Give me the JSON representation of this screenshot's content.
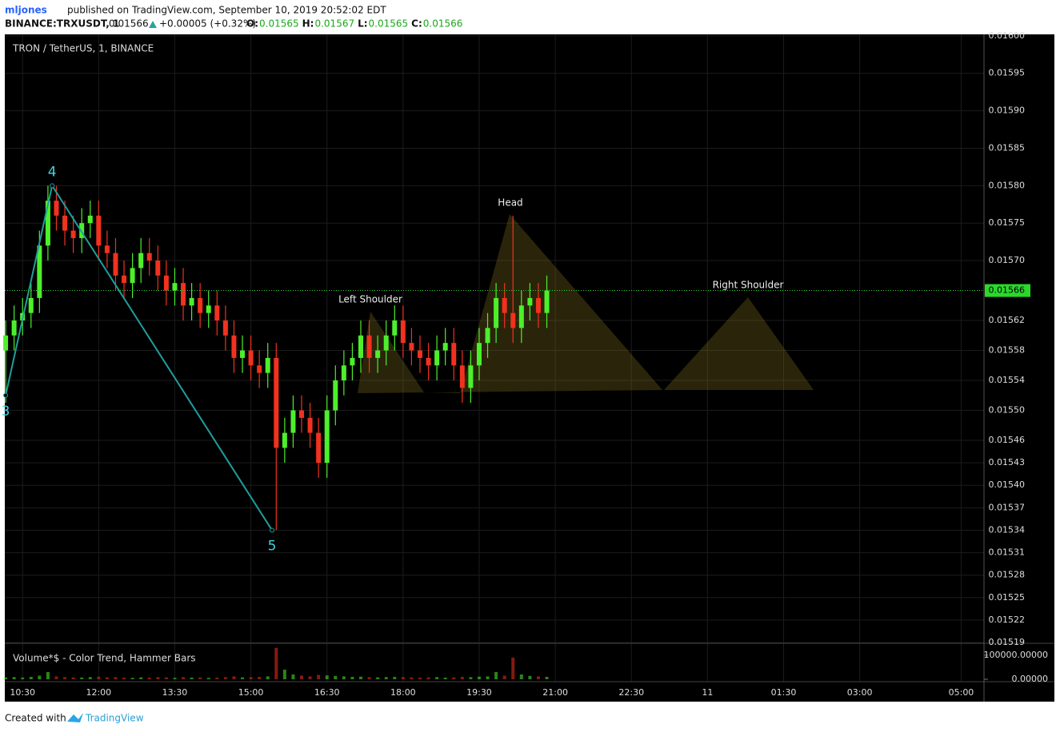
{
  "header": {
    "user": "mljones",
    "published": "published on TradingView.com, September 10, 2019 20:52:02 EDT",
    "symbol": "BINANCE:TRXUSDT, 1",
    "last": "0.01566",
    "change": "+0.00005 (+0.32%)",
    "ohlc": [
      {
        "key": "O:",
        "value": "0.01565"
      },
      {
        "key": "H:",
        "value": "0.01567"
      },
      {
        "key": "L:",
        "value": "0.01565"
      },
      {
        "key": "C:",
        "value": "0.01566"
      }
    ]
  },
  "chart_data": {
    "type": "candlestick",
    "title": "TRON / TetherUS, 1, BINANCE",
    "up_color": "#4cf02a",
    "down_color": "#f0321e",
    "grid": true,
    "x": [
      "10:10",
      "10:20",
      "10:30",
      "10:40",
      "10:50",
      "11:00",
      "11:10",
      "11:20",
      "11:30",
      "11:40",
      "11:50",
      "12:00",
      "12:10",
      "12:20",
      "12:30",
      "12:40",
      "12:50",
      "13:00",
      "13:10",
      "13:20",
      "13:30",
      "13:40",
      "13:50",
      "14:00",
      "14:10",
      "14:20",
      "14:30",
      "14:40",
      "14:50",
      "15:00",
      "15:10",
      "15:20",
      "15:30",
      "15:40",
      "15:50",
      "16:00",
      "16:10",
      "16:20",
      "16:30",
      "16:40",
      "16:50",
      "17:00",
      "17:10",
      "17:20",
      "17:30",
      "17:40",
      "17:50",
      "18:00",
      "18:10",
      "18:20",
      "18:30",
      "18:40",
      "18:50",
      "19:00",
      "19:10",
      "19:20",
      "19:30",
      "19:40",
      "19:50",
      "20:00",
      "20:10",
      "20:20",
      "20:30",
      "20:40",
      "20:50"
    ],
    "open": [
      0.01558,
      0.0156,
      0.01562,
      0.01563,
      0.01565,
      0.01572,
      0.01578,
      0.01576,
      0.01574,
      0.01573,
      0.01575,
      0.01576,
      0.01572,
      0.01571,
      0.01568,
      0.01567,
      0.01569,
      0.01571,
      0.0157,
      0.01568,
      0.01566,
      0.01567,
      0.01564,
      0.01565,
      0.01563,
      0.01564,
      0.01562,
      0.0156,
      0.01557,
      0.01558,
      0.01556,
      0.01555,
      0.01557,
      0.01545,
      0.01547,
      0.0155,
      0.01549,
      0.01547,
      0.01543,
      0.0155,
      0.01554,
      0.01556,
      0.01557,
      0.0156,
      0.01557,
      0.01558,
      0.0156,
      0.01562,
      0.01559,
      0.01558,
      0.01557,
      0.01556,
      0.01558,
      0.01559,
      0.01556,
      0.01553,
      0.01556,
      0.01559,
      0.01561,
      0.01565,
      0.01563,
      0.01561,
      0.01564,
      0.01565,
      0.01563
    ],
    "high": [
      0.01562,
      0.01564,
      0.01565,
      0.01567,
      0.01574,
      0.0158,
      0.0158,
      0.01578,
      0.01576,
      0.01577,
      0.01578,
      0.01578,
      0.01574,
      0.01573,
      0.0157,
      0.01571,
      0.01573,
      0.01573,
      0.01572,
      0.0157,
      0.01569,
      0.01569,
      0.01567,
      0.01567,
      0.01566,
      0.01566,
      0.01564,
      0.01562,
      0.0156,
      0.0156,
      0.01558,
      0.01559,
      0.01559,
      0.01549,
      0.01552,
      0.01552,
      0.01551,
      0.01549,
      0.01552,
      0.01556,
      0.01558,
      0.01559,
      0.01562,
      0.01562,
      0.0156,
      0.01562,
      0.01564,
      0.01564,
      0.01561,
      0.0156,
      0.01559,
      0.0156,
      0.01561,
      0.01561,
      0.01558,
      0.01558,
      0.01561,
      0.01563,
      0.01567,
      0.01567,
      0.01576,
      0.01566,
      0.01567,
      0.01567,
      0.01568
    ],
    "low": [
      0.01551,
      0.01558,
      0.0156,
      0.01561,
      0.01563,
      0.0157,
      0.01574,
      0.01572,
      0.01571,
      0.01571,
      0.01573,
      0.0157,
      0.01569,
      0.01566,
      0.01565,
      0.01565,
      0.01567,
      0.01568,
      0.01566,
      0.01564,
      0.01564,
      0.01562,
      0.01562,
      0.01561,
      0.01561,
      0.0156,
      0.01558,
      0.01555,
      0.01555,
      0.01554,
      0.01553,
      0.01553,
      0.01534,
      0.01543,
      0.01545,
      0.01547,
      0.01545,
      0.01541,
      0.01541,
      0.01548,
      0.01552,
      0.01554,
      0.01555,
      0.01555,
      0.01555,
      0.01556,
      0.01558,
      0.01557,
      0.01556,
      0.01555,
      0.01554,
      0.01554,
      0.01556,
      0.01554,
      0.01551,
      0.01551,
      0.01554,
      0.01557,
      0.01559,
      0.01561,
      0.01559,
      0.01559,
      0.01562,
      0.01561,
      0.01561
    ],
    "close": [
      0.0156,
      0.01562,
      0.01563,
      0.01565,
      0.01572,
      0.01578,
      0.01576,
      0.01574,
      0.01573,
      0.01575,
      0.01576,
      0.01572,
      0.01571,
      0.01568,
      0.01567,
      0.01569,
      0.01571,
      0.0157,
      0.01568,
      0.01566,
      0.01567,
      0.01564,
      0.01565,
      0.01563,
      0.01564,
      0.01562,
      0.0156,
      0.01557,
      0.01558,
      0.01556,
      0.01555,
      0.01557,
      0.01545,
      0.01547,
      0.0155,
      0.01549,
      0.01547,
      0.01543,
      0.0155,
      0.01554,
      0.01556,
      0.01557,
      0.0156,
      0.01557,
      0.01558,
      0.0156,
      0.01562,
      0.01559,
      0.01558,
      0.01557,
      0.01556,
      0.01558,
      0.01559,
      0.01556,
      0.01553,
      0.01556,
      0.01559,
      0.01561,
      0.01565,
      0.01563,
      0.01561,
      0.01564,
      0.01565,
      0.01563,
      0.01566
    ],
    "xlim": [
      "10:09",
      "05:27"
    ],
    "xticks": [
      "10:30",
      "12:00",
      "13:30",
      "15:00",
      "16:30",
      "18:00",
      "19:30",
      "21:00",
      "22:30",
      "11",
      "01:30",
      "03:00",
      "05:00"
    ],
    "ylim": [
      0.015189,
      0.016002
    ],
    "yticks": [
      {
        "value": 0.016,
        "label": "0.01600"
      },
      0.01595,
      {
        "value": 0.0159,
        "label": "0.01590"
      },
      0.01585,
      {
        "value": 0.0158,
        "label": "0.01580"
      },
      0.01575,
      {
        "value": 0.0157,
        "label": "0.01570"
      },
      0.01562,
      0.01558,
      0.01554,
      {
        "value": 0.0155,
        "label": "0.01550"
      },
      0.01546,
      0.01543,
      {
        "value": 0.0154,
        "label": "0.01540"
      },
      0.01537,
      0.01534,
      0.01531,
      0.01528,
      0.01525,
      0.01522,
      0.01519
    ],
    "last_price": {
      "value": 0.01566,
      "label": "0.01566",
      "color": "#2bd92b"
    },
    "wave": {
      "color": "#1f9e9e",
      "label_color": "#3fd7e0",
      "labels": [
        "3",
        "4",
        "5"
      ],
      "x": [
        "10:10",
        "11:05",
        "15:25"
      ],
      "values": [
        0.01552,
        0.0158,
        0.01534
      ]
    },
    "annotations": [
      "Left Shoulder",
      "Head",
      "Right Shoulder"
    ],
    "volume": {
      "title": "Volume*$ - Color Trend, Hammer Bars",
      "values": [
        8000,
        9000,
        7000,
        10000,
        15000,
        30000,
        12000,
        9000,
        8000,
        7000,
        9000,
        11000,
        8000,
        9000,
        7000,
        6000,
        8000,
        7000,
        9000,
        8000,
        6000,
        9000,
        7000,
        8000,
        6000,
        7000,
        9000,
        12000,
        8000,
        9000,
        10000,
        12000,
        130000,
        40000,
        20000,
        15000,
        12000,
        18000,
        16000,
        14000,
        12000,
        10000,
        11000,
        9000,
        8000,
        9000,
        10000,
        9000,
        8000,
        7000,
        8000,
        9000,
        7000,
        8000,
        10000,
        9000,
        11000,
        12000,
        30000,
        15000,
        90000,
        20000,
        14000,
        12000,
        10000
      ],
      "ylim": [
        0,
        146000
      ],
      "yticks": [
        {
          "value": 100000,
          "label": "100000.00000"
        },
        {
          "value": 0,
          "label": "0.00000"
        }
      ]
    }
  },
  "footer": {
    "created": "Created with",
    "brand": "TradingView"
  }
}
